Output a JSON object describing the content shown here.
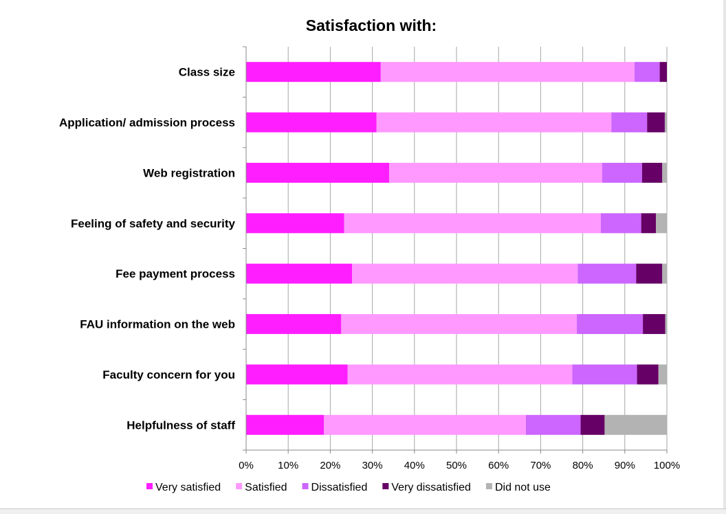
{
  "chart_data": {
    "type": "bar",
    "orientation": "horizontal",
    "stacked": "percent",
    "title": "Satisfaction with:",
    "categories": [
      "Class size",
      "Application/ admission process",
      "Web registration",
      "Feeling of safety and security",
      "Fee payment process",
      "FAU information on the web",
      "Faculty concern for you",
      "Helpfulness of staff"
    ],
    "series": [
      {
        "name": "Very satisfied",
        "color": "#ff1eff",
        "values": [
          32,
          31,
          34,
          23.3,
          25.2,
          22.6,
          24.1,
          18.5
        ]
      },
      {
        "name": "Satisfied",
        "color": "#ff99ff",
        "values": [
          60.3,
          55.8,
          50.6,
          61,
          53.6,
          56,
          53.4,
          48
        ]
      },
      {
        "name": "Dissatisfied",
        "color": "#cc66ff",
        "values": [
          6,
          8.5,
          9.5,
          9.6,
          13.9,
          15.7,
          15.4,
          13
        ]
      },
      {
        "name": "Very dissatisfied",
        "color": "#660066",
        "values": [
          1.7,
          4.2,
          4.8,
          3.5,
          6.2,
          5.3,
          5.1,
          5.7
        ]
      },
      {
        "name": "Did not use",
        "color": "#b3b3b3",
        "values": [
          0,
          0.5,
          1.1,
          2.6,
          1.1,
          0.4,
          2,
          14.8
        ]
      }
    ],
    "xlim": [
      0,
      100
    ],
    "x_ticks": [
      "0%",
      "10%",
      "20%",
      "30%",
      "40%",
      "50%",
      "60%",
      "70%",
      "80%",
      "90%",
      "100%"
    ],
    "grid": true,
    "legend_position": "bottom"
  }
}
